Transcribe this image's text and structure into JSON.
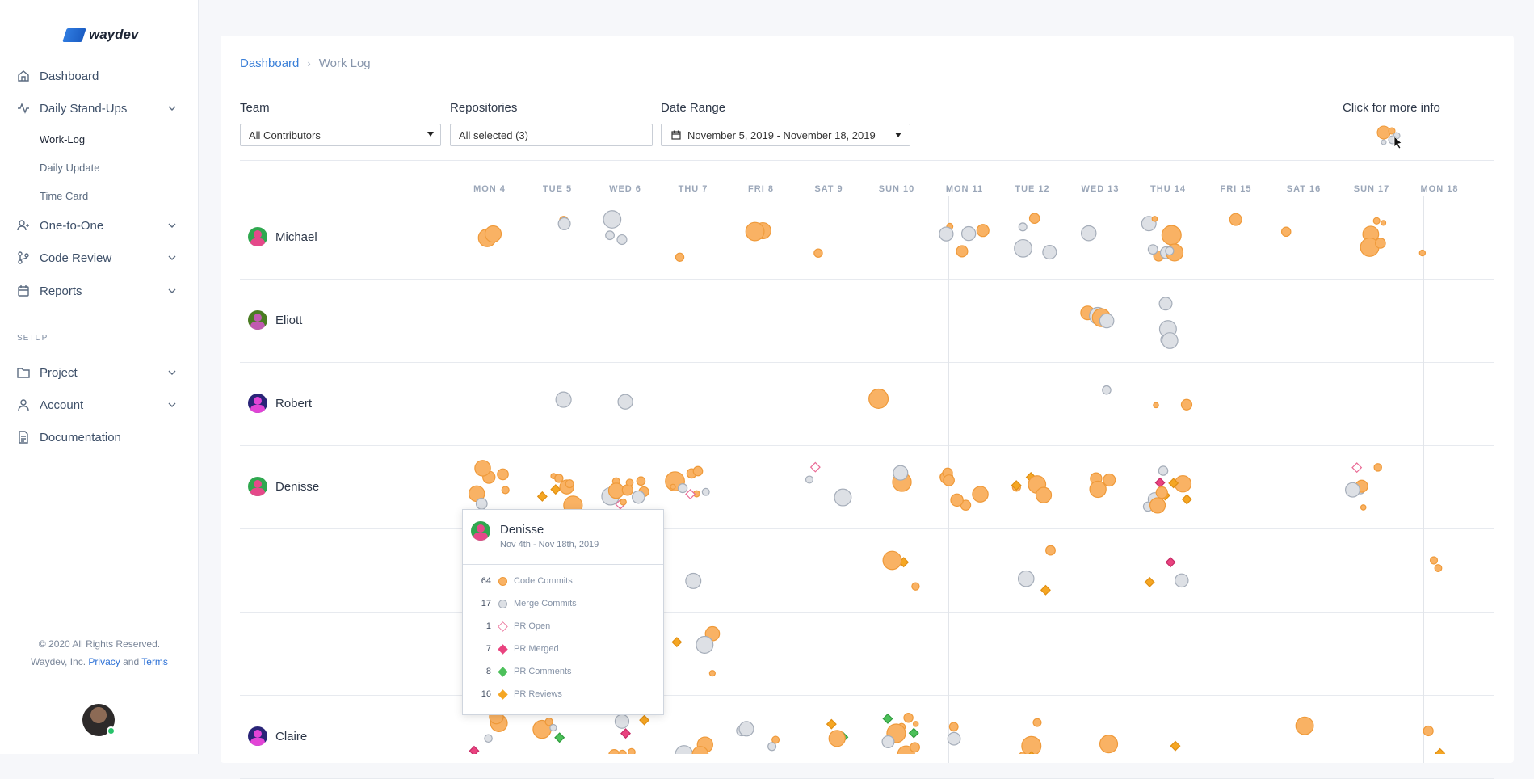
{
  "app": {
    "brand": "waydev"
  },
  "sidebar": {
    "items": [
      {
        "label": "Dashboard",
        "icon": "home-icon"
      },
      {
        "label": "Daily Stand-Ups",
        "icon": "activity-icon"
      },
      {
        "label": "One-to-One",
        "icon": "users-icon"
      },
      {
        "label": "Code Review",
        "icon": "git-branch-icon"
      },
      {
        "label": "Reports",
        "icon": "calendar-icon"
      },
      {
        "label": "Project",
        "icon": "folder-icon"
      },
      {
        "label": "Account",
        "icon": "user-icon"
      },
      {
        "label": "Documentation",
        "icon": "document-icon"
      }
    ],
    "subitems": [
      {
        "label": "Work-Log"
      },
      {
        "label": "Daily Update"
      },
      {
        "label": "Time Card"
      }
    ],
    "section": "SETUP",
    "footer": {
      "line1": "© 2020 All Rights Reserved.",
      "line2_prefix": "Waydev, Inc.",
      "privacy": "Privacy",
      "and": "and",
      "terms": "Terms"
    }
  },
  "breadcrumb": {
    "root": "Dashboard",
    "current": "Work Log"
  },
  "filters": {
    "team": {
      "label": "Team",
      "value": "All Contributors"
    },
    "repositories": {
      "label": "Repositories",
      "value": "All selected (3)"
    },
    "date_range": {
      "label": "Date Range",
      "value": "November 5, 2019 - November 18, 2019"
    },
    "info": {
      "label": "Click for more info"
    }
  },
  "days": [
    "MON 4",
    "TUE 5",
    "WED 6",
    "THU 7",
    "FRI 8",
    "SAT 9",
    "SUN 10",
    "MON 11",
    "TUE 12",
    "WED 13",
    "THU 14",
    "FRI 15",
    "SAT 16",
    "SUN 17",
    "MON 18"
  ],
  "contributors": [
    {
      "name": "Michael",
      "avatar_bg": "#2fa84f",
      "avatar_fg": "#e5498a"
    },
    {
      "name": "Eliott",
      "avatar_bg": "#4a7c22",
      "avatar_fg": "#c05ab0"
    },
    {
      "name": "Robert",
      "avatar_bg": "#2a2478",
      "avatar_fg": "#e244d6"
    },
    {
      "name": "Denisse",
      "avatar_bg": "#2fa84f",
      "avatar_fg": "#e5498a"
    },
    {
      "name": "",
      "avatar_bg": "#ffffff",
      "avatar_fg": "#ffffff"
    },
    {
      "name": "",
      "avatar_bg": "#ffffff",
      "avatar_fg": "#ffffff"
    },
    {
      "name": "Claire",
      "avatar_bg": "#2a2478",
      "avatar_fg": "#e244d6"
    }
  ],
  "tooltip": {
    "name": "Denisse",
    "range": "Nov 4th - Nov 18th, 2019",
    "stats": [
      {
        "count": "64",
        "label": "Code Commits",
        "shape": "circle",
        "color": "#f9b264"
      },
      {
        "count": "17",
        "label": "Merge Commits",
        "shape": "circle",
        "color": "#dde0e5"
      },
      {
        "count": "1",
        "label": "PR Open",
        "shape": "diamond-outline",
        "color": "#ea6b96"
      },
      {
        "count": "7",
        "label": "PR Merged",
        "shape": "diamond",
        "color": "#e9437f"
      },
      {
        "count": "8",
        "label": "PR Comments",
        "shape": "diamond",
        "color": "#4cc05a"
      },
      {
        "count": "16",
        "label": "PR Reviews",
        "shape": "diamond",
        "color": "#f5a623"
      }
    ]
  },
  "colors": {
    "commit": "#f9b264",
    "commit_stroke": "#ef9a3a",
    "merge": "#dde0e5",
    "merge_stroke": "#a5adb9",
    "pr_open": "#ea6b96",
    "pr_merged": "#e9437f",
    "pr_comment": "#4cc05a",
    "pr_review": "#f5a623",
    "accent": "#3a7fd8"
  }
}
